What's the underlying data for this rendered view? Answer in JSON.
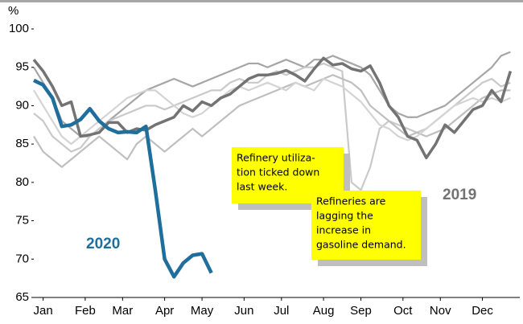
{
  "chart_data": {
    "type": "line",
    "y_label": "%",
    "x": [
      1,
      2,
      3,
      4,
      5,
      6,
      7,
      8,
      9,
      10,
      11,
      12,
      13,
      14,
      15,
      16,
      17,
      18,
      19,
      20,
      21,
      22,
      23,
      24,
      25,
      26,
      27,
      28,
      29,
      30,
      31,
      32,
      33,
      34,
      35,
      36,
      37,
      38,
      39,
      40,
      41,
      42,
      43,
      44,
      45,
      46,
      47,
      48,
      49,
      50,
      51,
      52
    ],
    "xlim": [
      1,
      53
    ],
    "xticks": [
      {
        "value": 2,
        "label": "Jan"
      },
      {
        "value": 6.5,
        "label": "Feb"
      },
      {
        "value": 10.5,
        "label": "Mar"
      },
      {
        "value": 15,
        "label": "Apr"
      },
      {
        "value": 19,
        "label": "May"
      },
      {
        "value": 23.5,
        "label": "Jun"
      },
      {
        "value": 27.5,
        "label": "Jul"
      },
      {
        "value": 32,
        "label": "Aug"
      },
      {
        "value": 36,
        "label": "Sep"
      },
      {
        "value": 40.5,
        "label": "Oct"
      },
      {
        "value": 44.5,
        "label": "Nov"
      },
      {
        "value": 49,
        "label": "Dec"
      }
    ],
    "ylim": [
      65,
      100
    ],
    "yticks": [
      65,
      70,
      75,
      80,
      85,
      90,
      95,
      100
    ],
    "series": [
      {
        "color": "#a6a6a6",
        "width": 2.2,
        "values": [
          95,
          93,
          91,
          88,
          87,
          86,
          86,
          87,
          88,
          89,
          90,
          91,
          92,
          92.5,
          93,
          93.5,
          93,
          92.5,
          93,
          93.5,
          94,
          94.5,
          95,
          95.5,
          95.5,
          95,
          95.5,
          96,
          95.5,
          95,
          96,
          96,
          96.5,
          96,
          95.5,
          95,
          94,
          92,
          90,
          89,
          88.5,
          88.5,
          89,
          89.5,
          90,
          91,
          92,
          93,
          94,
          95,
          96.5,
          97
        ]
      },
      {
        "color": "#c9c9c9",
        "width": 2.2,
        "values": [
          89,
          88,
          86,
          85,
          84,
          84.5,
          86,
          87,
          88,
          88.5,
          89,
          89.5,
          90,
          90,
          89.5,
          90,
          90.5,
          91,
          91.5,
          92,
          92,
          93,
          93.5,
          93,
          93,
          94,
          94.5,
          94,
          94.5,
          95,
          95,
          95.5,
          95,
          94.5,
          80,
          79,
          82,
          87,
          88,
          87.5,
          87,
          86.5,
          87,
          88,
          89,
          90,
          91,
          92,
          93,
          93.5,
          92.5,
          93
        ]
      },
      {
        "color": "#bfbfbf",
        "width": 2.2,
        "values": [
          86,
          84,
          83,
          82,
          83,
          84,
          85,
          86,
          85,
          84,
          83,
          85,
          86,
          85,
          84,
          85,
          86,
          87,
          86,
          87,
          88,
          89,
          90,
          90.5,
          91,
          91.5,
          92,
          92.5,
          93,
          92.5,
          93,
          93.5,
          94,
          93.5,
          93,
          92,
          90,
          89,
          88,
          87,
          86,
          86.5,
          86,
          86.5,
          87,
          88,
          89,
          90,
          91,
          91.5,
          92,
          92
        ]
      },
      {
        "color": "#d4d4d4",
        "width": 2.2,
        "values": [
          92,
          90,
          88,
          86,
          85,
          86,
          87,
          88,
          89,
          90,
          91,
          91.5,
          92,
          92,
          91,
          90,
          89,
          88.5,
          89,
          90,
          91,
          92,
          92.5,
          92,
          92.5,
          93,
          92.5,
          92,
          93,
          92.5,
          92,
          93.5,
          93,
          92.5,
          91.5,
          90.5,
          89,
          87.5,
          87,
          86,
          85.5,
          86,
          87,
          88,
          89,
          90,
          90.5,
          91,
          90.5,
          91,
          90.5,
          91
        ]
      },
      {
        "name": "2019",
        "color": "#737373",
        "width": 3.5,
        "values": [
          96,
          94.5,
          92.5,
          90,
          90.5,
          86,
          86.2,
          86.5,
          87.8,
          87.8,
          86.5,
          87,
          86.8,
          87.5,
          88,
          88.5,
          90,
          89.3,
          90.5,
          90,
          91,
          91.5,
          92.5,
          93.5,
          94,
          94,
          94.2,
          94.6,
          94,
          93.2,
          94.8,
          96.2,
          95.3,
          95.5,
          94.8,
          94.5,
          95.2,
          93,
          90,
          88.5,
          86,
          85.5,
          83.2,
          85,
          87.5,
          86.5,
          88,
          89.5,
          90,
          92,
          90.5,
          94.5
        ]
      },
      {
        "name": "2020",
        "color": "#1f6e9c",
        "width": 4.5,
        "values": [
          93.3,
          92.7,
          91,
          87.3,
          87.5,
          88.2,
          89.6,
          88,
          87,
          86.5,
          86.6,
          86.5,
          87.3,
          79,
          70,
          67.7,
          69.5,
          70.5,
          70.7,
          68.2,
          null,
          null,
          null,
          null,
          null,
          null,
          null,
          null,
          null,
          null,
          null,
          null,
          null,
          null,
          null,
          null,
          null,
          null,
          null,
          null,
          null,
          null,
          null,
          null,
          null,
          null,
          null,
          null,
          null,
          null,
          null,
          null
        ]
      }
    ],
    "annotations": [
      {
        "lines": [
          "Refinery utiliza-",
          "tion ticked down",
          "last week."
        ]
      },
      {
        "lines": [
          "Refineries are",
          "lagging the",
          "increase in",
          "gasoline demand."
        ]
      }
    ]
  }
}
